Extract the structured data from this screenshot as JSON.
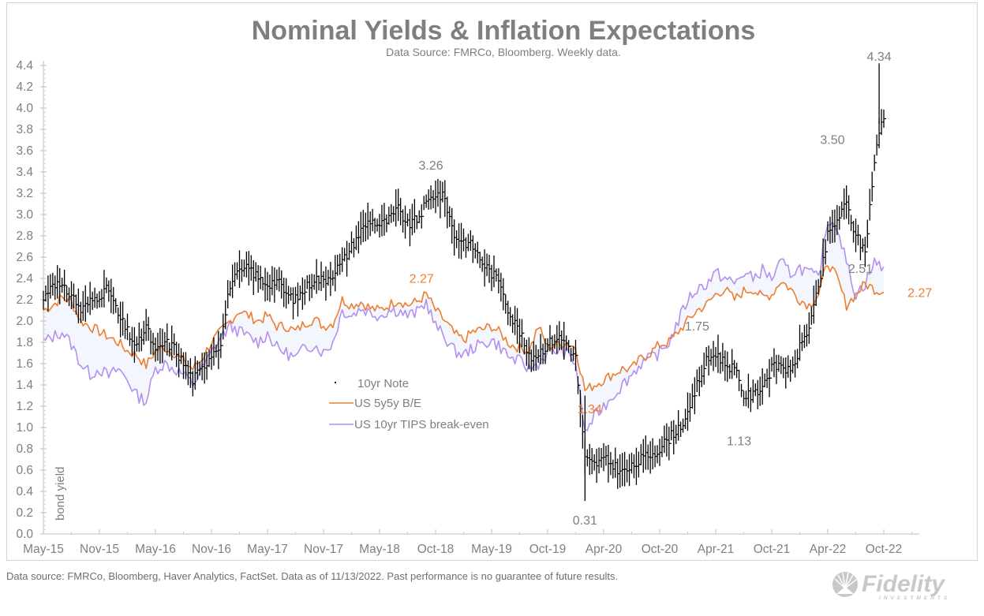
{
  "chart_data": {
    "type": "line",
    "title": "Nominal Yields & Inflation Expectations",
    "subtitle": "Data Source: FMRCo, Bloomberg.   Weekly data.",
    "ylabel": "bond yield",
    "xlabel": "",
    "ylim": [
      0.0,
      4.4
    ],
    "yticks": [
      "0.0",
      "0.2",
      "0.4",
      "0.6",
      "0.8",
      "1.0",
      "1.2",
      "1.4",
      "1.6",
      "1.8",
      "2.0",
      "2.2",
      "2.4",
      "2.6",
      "2.8",
      "3.0",
      "3.2",
      "3.4",
      "3.6",
      "3.8",
      "4.0",
      "4.2",
      "4.4"
    ],
    "xticks": [
      "May-15",
      "Nov-15",
      "May-16",
      "Nov-16",
      "May-17",
      "Nov-17",
      "May-18",
      "Oct-18",
      "May-19",
      "Oct-19",
      "Apr-20",
      "Oct-20",
      "Apr-21",
      "Oct-21",
      "Apr-22",
      "Oct-22"
    ],
    "x_range_months": [
      0,
      91.5
    ],
    "grid": false,
    "legend": {
      "position": "center-left",
      "entries": [
        {
          "name": "10yr Note",
          "style": "hi-lo-bar",
          "color": "#000000"
        },
        {
          "name": "US 5y5y B/E",
          "style": "line",
          "color": "#ed7d31"
        },
        {
          "name": "US 10yr TIPS break-even",
          "style": "line",
          "color": "#b48ff0"
        }
      ]
    },
    "series": [
      {
        "name": "10yr Note",
        "kind": "hi-lo-weekly",
        "color": "#000000",
        "x_months": [
          0,
          1,
          2,
          3,
          4,
          5,
          6,
          7,
          8,
          9,
          10,
          11,
          12,
          13,
          14,
          15,
          16,
          17,
          18,
          19,
          20,
          21,
          22,
          23,
          24,
          25,
          26,
          27,
          28,
          29,
          30,
          31,
          32,
          33,
          34,
          35,
          36,
          37,
          38,
          39,
          40,
          41,
          42,
          43,
          44,
          45,
          46,
          47,
          48,
          49,
          50,
          51,
          52,
          53,
          54,
          55,
          56,
          57,
          58,
          59,
          60,
          61,
          62,
          63,
          64,
          65,
          66,
          67,
          68,
          69,
          70,
          71,
          72,
          73,
          74,
          75,
          76,
          77,
          78,
          79,
          80,
          81,
          82,
          83,
          84,
          85,
          86,
          87,
          88,
          89,
          90
        ],
        "values": [
          2.2,
          2.38,
          2.3,
          2.25,
          2.1,
          2.18,
          2.25,
          2.3,
          2.05,
          1.9,
          1.75,
          1.95,
          1.7,
          1.8,
          1.75,
          1.6,
          1.45,
          1.55,
          1.7,
          1.8,
          2.35,
          2.45,
          2.5,
          2.4,
          2.35,
          2.38,
          2.25,
          2.2,
          2.3,
          2.4,
          2.38,
          2.45,
          2.55,
          2.7,
          2.85,
          2.95,
          2.9,
          2.95,
          3.05,
          2.9,
          2.95,
          3.1,
          3.2,
          3.15,
          2.8,
          2.75,
          2.7,
          2.55,
          2.45,
          2.35,
          2.05,
          1.9,
          1.65,
          1.7,
          1.78,
          1.85,
          1.8,
          1.65,
          0.7,
          0.65,
          0.7,
          0.65,
          0.58,
          0.62,
          0.7,
          0.75,
          0.8,
          0.9,
          1.0,
          1.1,
          1.4,
          1.62,
          1.7,
          1.6,
          1.55,
          1.3,
          1.3,
          1.4,
          1.55,
          1.6,
          1.5,
          1.75,
          1.95,
          2.3,
          2.8,
          2.95,
          3.1,
          2.8,
          2.65,
          3.5,
          4.0,
          4.25,
          3.9
        ],
        "annotations": [
          {
            "label": "3.26",
            "x_months": 41.5,
            "value": 3.26
          },
          {
            "label": "0.31",
            "x_months": 58.0,
            "value": 0.31
          },
          {
            "label": "1.75",
            "x_months": 70.0,
            "value": 1.75
          },
          {
            "label": "1.13",
            "x_months": 74.5,
            "value": 1.13
          },
          {
            "label": "3.50",
            "x_months": 84.5,
            "value": 3.5
          },
          {
            "label": "4.34",
            "x_months": 89.5,
            "value": 4.34
          }
        ]
      },
      {
        "name": "US 5y5y B/E",
        "color": "#ed7d31",
        "x_months": [
          0,
          1,
          2,
          3,
          4,
          5,
          6,
          7,
          8,
          9,
          10,
          11,
          12,
          13,
          14,
          15,
          16,
          17,
          18,
          19,
          20,
          21,
          22,
          23,
          24,
          25,
          26,
          27,
          28,
          29,
          30,
          31,
          32,
          33,
          34,
          35,
          36,
          37,
          38,
          39,
          40,
          41,
          42,
          43,
          44,
          45,
          46,
          47,
          48,
          49,
          50,
          51,
          52,
          53,
          54,
          55,
          56,
          57,
          58,
          59,
          60,
          61,
          62,
          63,
          64,
          65,
          66,
          67,
          68,
          69,
          70,
          71,
          72,
          73,
          74,
          75,
          76,
          77,
          78,
          79,
          80,
          81,
          82,
          83,
          84,
          85,
          86,
          87,
          88,
          89,
          90
        ],
        "values": [
          2.1,
          2.15,
          2.22,
          2.18,
          2.0,
          1.95,
          1.9,
          1.85,
          1.8,
          1.72,
          1.68,
          1.58,
          1.72,
          1.75,
          1.7,
          1.62,
          1.55,
          1.65,
          1.8,
          1.9,
          2.0,
          2.1,
          2.05,
          2.0,
          2.05,
          1.95,
          1.95,
          1.9,
          1.98,
          2.02,
          1.95,
          1.98,
          2.2,
          2.15,
          2.18,
          2.12,
          2.1,
          2.15,
          2.2,
          2.15,
          2.18,
          2.25,
          2.1,
          2.0,
          1.88,
          1.82,
          1.9,
          1.92,
          1.95,
          1.88,
          1.78,
          1.75,
          1.72,
          1.95,
          1.75,
          1.78,
          1.8,
          1.75,
          1.35,
          1.4,
          1.45,
          1.5,
          1.55,
          1.55,
          1.65,
          1.7,
          1.78,
          1.8,
          1.9,
          2.0,
          2.1,
          2.15,
          2.25,
          2.3,
          2.2,
          2.28,
          2.3,
          2.22,
          2.25,
          2.38,
          2.3,
          2.2,
          2.15,
          2.25,
          2.55,
          2.4,
          2.15,
          2.25,
          2.35,
          2.3,
          2.27
        ],
        "annotations": [
          {
            "label": "2.27",
            "x_months": 40.5,
            "value": 2.27
          },
          {
            "label": "1.34",
            "x_months": 58.5,
            "value": 1.34
          },
          {
            "label": "2.27",
            "x_months": 91.5,
            "value": 2.27
          }
        ]
      },
      {
        "name": "US 10yr TIPS break-even",
        "color": "#b48ff0",
        "x_months": [
          0,
          1,
          2,
          3,
          4,
          5,
          6,
          7,
          8,
          9,
          10,
          11,
          12,
          13,
          14,
          15,
          16,
          17,
          18,
          19,
          20,
          21,
          22,
          23,
          24,
          25,
          26,
          27,
          28,
          29,
          30,
          31,
          32,
          33,
          34,
          35,
          36,
          37,
          38,
          39,
          40,
          41,
          42,
          43,
          44,
          45,
          46,
          47,
          48,
          49,
          50,
          51,
          52,
          53,
          54,
          55,
          56,
          57,
          58,
          59,
          60,
          61,
          62,
          63,
          64,
          65,
          66,
          67,
          68,
          69,
          70,
          71,
          72,
          73,
          74,
          75,
          76,
          77,
          78,
          79,
          80,
          81,
          82,
          83,
          84,
          85,
          86,
          87,
          88,
          89,
          90
        ],
        "values": [
          1.8,
          1.85,
          1.9,
          1.78,
          1.6,
          1.5,
          1.55,
          1.48,
          1.55,
          1.45,
          1.3,
          1.25,
          1.55,
          1.6,
          1.55,
          1.5,
          1.4,
          1.55,
          1.7,
          1.85,
          1.95,
          1.9,
          1.85,
          1.8,
          1.88,
          1.75,
          1.7,
          1.65,
          1.75,
          1.78,
          1.7,
          1.8,
          2.1,
          2.05,
          2.12,
          2.08,
          2.05,
          2.1,
          2.1,
          2.05,
          2.08,
          2.18,
          1.95,
          1.85,
          1.72,
          1.68,
          1.75,
          1.78,
          1.82,
          1.75,
          1.65,
          1.62,
          1.55,
          1.6,
          1.7,
          1.72,
          1.7,
          1.6,
          0.95,
          1.1,
          1.2,
          1.3,
          1.4,
          1.5,
          1.6,
          1.65,
          1.7,
          1.8,
          2.0,
          2.2,
          2.3,
          2.35,
          2.45,
          2.4,
          2.35,
          2.45,
          2.4,
          2.48,
          2.4,
          2.55,
          2.45,
          2.5,
          2.45,
          2.4,
          2.95,
          2.9,
          2.55,
          2.25,
          2.35,
          2.55,
          2.51
        ],
        "annotations": [
          {
            "label": "2.51",
            "x_months": 87.5,
            "value": 2.51
          }
        ]
      }
    ]
  },
  "footnote": "Data source: FMRCo, Bloomberg, Haver Analytics, FactSet. Data as of 11/13/2022. Past performance is no guarantee of future results.",
  "logo": {
    "brand": "Fidelity",
    "tagline": "INVESTMENTS",
    "icon": "fidelity-sunburst-icon"
  }
}
